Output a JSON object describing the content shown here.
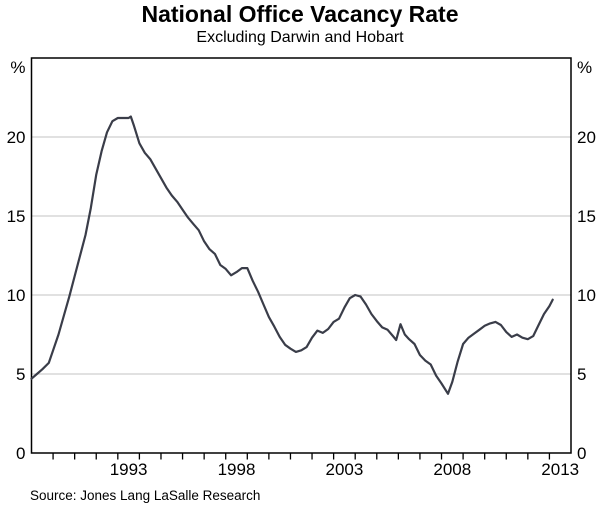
{
  "chart_data": {
    "type": "line",
    "title": "National Office Vacancy Rate",
    "subtitle": "Excluding Darwin and Hobart",
    "source": "Source: Jones Lang LaSalle Research",
    "unit_label": "%",
    "x_range": [
      1989,
      2014
    ],
    "y_range": [
      0,
      25
    ],
    "grid": true,
    "y_gridlines": [
      5,
      10,
      15,
      20
    ],
    "y_tick_labels": [
      0,
      5,
      10,
      15,
      20
    ],
    "x_minor_ticks": [
      1990,
      1991,
      1992,
      1993,
      1994,
      1995,
      1996,
      1997,
      1998,
      1999,
      2000,
      2001,
      2002,
      2003,
      2004,
      2005,
      2006,
      2007,
      2008,
      2009,
      2010,
      2011,
      2012,
      2013
    ],
    "x_tick_labels": [
      1993,
      1998,
      2003,
      2008,
      2013
    ],
    "colors": {
      "line": "#3a3d49",
      "grid": "#c3c3c3",
      "axis": "#000000",
      "text": "#000000"
    },
    "series": [
      {
        "name": "National office vacancy rate (excluding Darwin and Hobart), per cent",
        "points": [
          [
            1989.0,
            4.7
          ],
          [
            1989.25,
            5.0
          ],
          [
            1989.5,
            5.3
          ],
          [
            1989.8,
            5.7
          ],
          [
            1990.0,
            6.5
          ],
          [
            1990.25,
            7.5
          ],
          [
            1990.5,
            8.7
          ],
          [
            1990.75,
            9.9
          ],
          [
            1991.0,
            11.2
          ],
          [
            1991.25,
            12.5
          ],
          [
            1991.5,
            13.8
          ],
          [
            1991.75,
            15.5
          ],
          [
            1992.0,
            17.6
          ],
          [
            1992.25,
            19.1
          ],
          [
            1992.5,
            20.3
          ],
          [
            1992.75,
            21.0
          ],
          [
            1993.0,
            21.2
          ],
          [
            1993.25,
            21.2
          ],
          [
            1993.5,
            21.2
          ],
          [
            1993.6,
            21.3
          ],
          [
            1993.75,
            20.7
          ],
          [
            1994.0,
            19.6
          ],
          [
            1994.25,
            19.0
          ],
          [
            1994.5,
            18.6
          ],
          [
            1994.75,
            18.0
          ],
          [
            1995.0,
            17.4
          ],
          [
            1995.25,
            16.8
          ],
          [
            1995.5,
            16.3
          ],
          [
            1995.75,
            15.9
          ],
          [
            1996.0,
            15.4
          ],
          [
            1996.25,
            14.9
          ],
          [
            1996.5,
            14.5
          ],
          [
            1996.75,
            14.1
          ],
          [
            1997.0,
            13.4
          ],
          [
            1997.25,
            12.9
          ],
          [
            1997.5,
            12.6
          ],
          [
            1997.75,
            11.9
          ],
          [
            1998.0,
            11.65
          ],
          [
            1998.25,
            11.25
          ],
          [
            1998.5,
            11.45
          ],
          [
            1998.75,
            11.7
          ],
          [
            1999.0,
            11.7
          ],
          [
            1999.25,
            10.9
          ],
          [
            1999.5,
            10.2
          ],
          [
            1999.75,
            9.4
          ],
          [
            2000.0,
            8.6
          ],
          [
            2000.25,
            8.0
          ],
          [
            2000.5,
            7.35
          ],
          [
            2000.75,
            6.85
          ],
          [
            2001.0,
            6.6
          ],
          [
            2001.25,
            6.4
          ],
          [
            2001.5,
            6.5
          ],
          [
            2001.75,
            6.7
          ],
          [
            2002.0,
            7.3
          ],
          [
            2002.25,
            7.75
          ],
          [
            2002.5,
            7.6
          ],
          [
            2002.75,
            7.85
          ],
          [
            2003.0,
            8.3
          ],
          [
            2003.25,
            8.5
          ],
          [
            2003.5,
            9.2
          ],
          [
            2003.75,
            9.8
          ],
          [
            2004.0,
            10.0
          ],
          [
            2004.25,
            9.9
          ],
          [
            2004.5,
            9.4
          ],
          [
            2004.75,
            8.8
          ],
          [
            2005.0,
            8.35
          ],
          [
            2005.25,
            7.95
          ],
          [
            2005.5,
            7.8
          ],
          [
            2005.75,
            7.4
          ],
          [
            2005.9,
            7.15
          ],
          [
            2006.1,
            8.15
          ],
          [
            2006.3,
            7.5
          ],
          [
            2006.5,
            7.2
          ],
          [
            2006.75,
            6.9
          ],
          [
            2007.0,
            6.2
          ],
          [
            2007.25,
            5.85
          ],
          [
            2007.5,
            5.6
          ],
          [
            2007.75,
            4.9
          ],
          [
            2008.0,
            4.4
          ],
          [
            2008.3,
            3.75
          ],
          [
            2008.5,
            4.5
          ],
          [
            2008.75,
            5.8
          ],
          [
            2009.0,
            6.9
          ],
          [
            2009.25,
            7.3
          ],
          [
            2009.5,
            7.55
          ],
          [
            2009.75,
            7.8
          ],
          [
            2010.0,
            8.05
          ],
          [
            2010.25,
            8.2
          ],
          [
            2010.5,
            8.3
          ],
          [
            2010.75,
            8.1
          ],
          [
            2011.0,
            7.65
          ],
          [
            2011.25,
            7.35
          ],
          [
            2011.5,
            7.5
          ],
          [
            2011.75,
            7.3
          ],
          [
            2012.0,
            7.2
          ],
          [
            2012.25,
            7.4
          ],
          [
            2012.5,
            8.1
          ],
          [
            2012.75,
            8.8
          ],
          [
            2013.0,
            9.3
          ],
          [
            2013.15,
            9.7
          ]
        ]
      }
    ]
  }
}
